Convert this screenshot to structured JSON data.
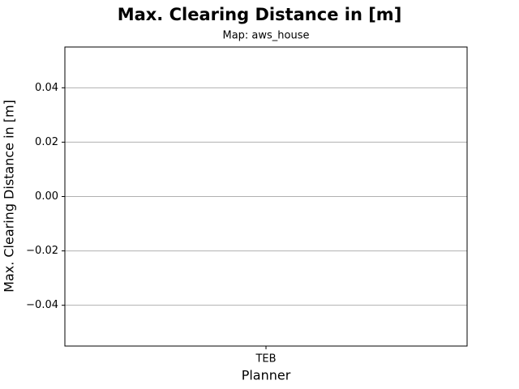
{
  "chart_data": {
    "type": "bar",
    "title": "Max. Clearing Distance in [m]",
    "subtitle": "Map: aws_house",
    "x_label": "Planner",
    "y_label": "Max. Clearing Distance in [m]",
    "categories": [
      "TEB"
    ],
    "values": [
      0
    ],
    "color": "#1f77b4",
    "ylim": [
      -0.055,
      0.055
    ],
    "yticks": [
      {
        "value": -0.04,
        "label": "−0.04"
      },
      {
        "value": -0.02,
        "label": "−0.02"
      },
      {
        "value": 0,
        "label": "0.00"
      },
      0.02,
      0.04
    ],
    "grid": true
  }
}
